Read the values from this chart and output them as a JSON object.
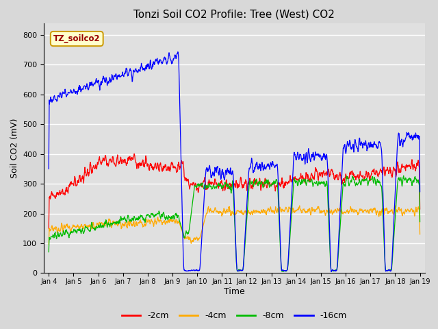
{
  "title": "Tonzi Soil CO2 Profile: Tree (West) CO2",
  "ylabel": "Soil CO2 (mV)",
  "xlabel": "Time",
  "legend_label": "TZ_soilco2",
  "series_labels": [
    "-2cm",
    "-4cm",
    "-8cm",
    "-16cm"
  ],
  "series_colors": [
    "#ff0000",
    "#ffaa00",
    "#00bb00",
    "#0000ff"
  ],
  "ylim": [
    0,
    840
  ],
  "yticks": [
    0,
    100,
    200,
    300,
    400,
    500,
    600,
    700,
    800
  ],
  "background_color": "#d8d8d8",
  "plot_bg_color": "#e0e0e0",
  "grid_color": "#ffffff",
  "title_fontsize": 11,
  "axis_fontsize": 9,
  "tick_fontsize": 8,
  "legend_fontsize": 9
}
